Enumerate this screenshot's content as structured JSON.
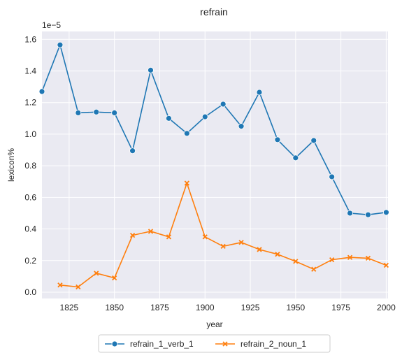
{
  "chart_data": {
    "type": "line",
    "title": "refrain",
    "xlabel": "year",
    "ylabel": "lexicon%",
    "y_offset_label": "1e−5",
    "x_ticks": [
      1825,
      1850,
      1875,
      1900,
      1925,
      1950,
      1975,
      2000
    ],
    "y_ticks": [
      0.0,
      0.2,
      0.4,
      0.6,
      0.8,
      1.0,
      1.2,
      1.4,
      1.6
    ],
    "y_tick_labels": [
      "0.0",
      "0.2",
      "0.4",
      "0.6",
      "0.8",
      "1.0",
      "1.2",
      "1.4",
      "1.6"
    ],
    "xlim": [
      1810,
      2001
    ],
    "ylim": [
      -0.04,
      1.65
    ],
    "y_scale_note": "values in units of 1e-5",
    "grid": true,
    "legend_position": "bottom-center",
    "background": "#eaeaf2",
    "series": [
      {
        "name": "refrain_1_verb_1",
        "color": "#1f77b4",
        "marker": "circle",
        "x": [
          1810,
          1820,
          1830,
          1840,
          1850,
          1860,
          1870,
          1880,
          1890,
          1900,
          1910,
          1920,
          1930,
          1940,
          1950,
          1960,
          1970,
          1980,
          1990,
          2000
        ],
        "y": [
          1.27,
          1.565,
          1.135,
          1.14,
          1.135,
          0.895,
          1.405,
          1.1,
          1.005,
          1.11,
          1.19,
          1.05,
          1.265,
          0.965,
          0.85,
          0.96,
          0.73,
          0.5,
          0.49,
          0.505
        ]
      },
      {
        "name": "refrain_2_noun_1",
        "color": "#ff7f0e",
        "marker": "x",
        "x": [
          1820,
          1830,
          1840,
          1850,
          1860,
          1870,
          1880,
          1890,
          1900,
          1910,
          1920,
          1930,
          1940,
          1950,
          1960,
          1970,
          1980,
          1990,
          2000
        ],
        "y": [
          0.045,
          0.033,
          0.12,
          0.09,
          0.36,
          0.385,
          0.35,
          0.69,
          0.35,
          0.29,
          0.315,
          0.27,
          0.24,
          0.195,
          0.145,
          0.205,
          0.22,
          0.215,
          0.17
        ]
      }
    ]
  }
}
